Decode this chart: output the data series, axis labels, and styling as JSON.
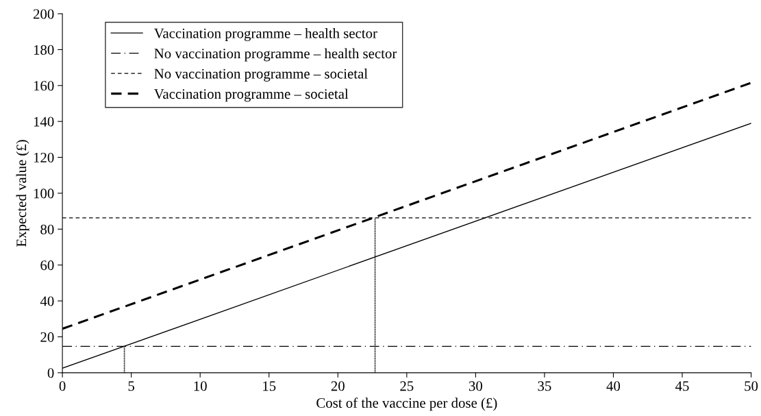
{
  "chart_data": {
    "type": "line",
    "xlabel": "Cost of the vaccine per dose (£)",
    "ylabel": "Expected value (£)",
    "xlim": [
      0,
      50
    ],
    "xticks": [
      0,
      5,
      10,
      15,
      20,
      25,
      30,
      35,
      40,
      45,
      50
    ],
    "ylim": [
      0,
      200
    ],
    "yticks": [
      0,
      20,
      40,
      60,
      80,
      100,
      120,
      140,
      160,
      180,
      200
    ],
    "grid": false,
    "legend": "top left",
    "marker": "none",
    "series": [
      {
        "name": "Vaccination programme – health sector",
        "color": "#000000",
        "line_style": "solid",
        "x": [
          0,
          50
        ],
        "values": [
          2.5,
          139
        ]
      },
      {
        "name": "No vaccination programme – health sector",
        "color": "#000000",
        "line_style": "dashdot",
        "x": [
          0,
          50
        ],
        "values": [
          14.7,
          14.7
        ]
      },
      {
        "name": "No vaccination programme – societal",
        "color": "#000000",
        "line_style": "dashed",
        "x": [
          0,
          50
        ],
        "values": [
          86.3,
          86.3
        ]
      },
      {
        "name": "Vaccination programme – societal",
        "color": "#000000",
        "line_style": "bold_dashed",
        "x": [
          0,
          50
        ],
        "values": [
          24.5,
          161.5
        ]
      },
      {
        "color": "#000000",
        "line_style": "dotted",
        "x": [
          4.5,
          4.5
        ],
        "values": [
          0,
          14.7
        ]
      },
      {
        "color": "#000000",
        "line_style": "dotted",
        "x": [
          22.7,
          22.7
        ],
        "values": [
          0,
          86.3
        ]
      }
    ]
  }
}
